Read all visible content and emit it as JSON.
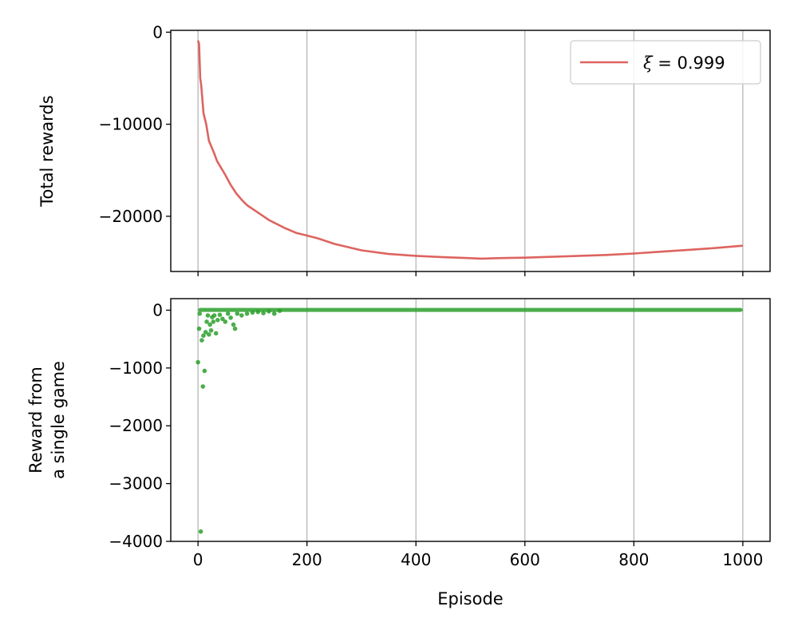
{
  "chart_data": [
    {
      "type": "line",
      "ylabel": "Total rewards",
      "xlim": [
        -50,
        1050
      ],
      "ylim": [
        -26000,
        200
      ],
      "xticks": [
        0,
        200,
        400,
        600,
        800,
        1000
      ],
      "yticks": [
        0,
        -10000,
        -20000
      ],
      "ytick_labels": [
        "0",
        "−10000",
        "−20000"
      ],
      "grid": "x",
      "legend": {
        "placement": "top-right",
        "prefix": "ξ",
        "suffix": " = 0.999"
      },
      "series": [
        {
          "name": "ξ = 0.999",
          "color": "#d9534f",
          "x": [
            0,
            2,
            4,
            6,
            10,
            15,
            20,
            25,
            30,
            35,
            40,
            50,
            60,
            70,
            80,
            90,
            100,
            110,
            120,
            130,
            140,
            150,
            160,
            180,
            200,
            220,
            250,
            300,
            350,
            400,
            450,
            500,
            520,
            550,
            600,
            650,
            700,
            750,
            800,
            850,
            900,
            950,
            1000
          ],
          "y": [
            -900,
            -1300,
            -5000,
            -5800,
            -8800,
            -10000,
            -11800,
            -12500,
            -13200,
            -14000,
            -14500,
            -15500,
            -16600,
            -17500,
            -18200,
            -18800,
            -19200,
            -19600,
            -20000,
            -20400,
            -20700,
            -21000,
            -21300,
            -21800,
            -22100,
            -22400,
            -23000,
            -23700,
            -24100,
            -24300,
            -24450,
            -24550,
            -24600,
            -24550,
            -24500,
            -24400,
            -24300,
            -24200,
            -24050,
            -23850,
            -23650,
            -23450,
            -23200
          ]
        }
      ]
    },
    {
      "type": "scatter",
      "xlabel": "Episode",
      "ylabel_lines": [
        "Reward from",
        "a single game"
      ],
      "xlim": [
        -50,
        1050
      ],
      "ylim": [
        -4000,
        200
      ],
      "xticks": [
        0,
        200,
        400,
        600,
        800,
        1000
      ],
      "xtick_labels": [
        "0",
        "200",
        "400",
        "600",
        "800",
        "1000"
      ],
      "yticks": [
        0,
        -1000,
        -2000,
        -3000,
        -4000
      ],
      "ytick_labels": [
        "0",
        "−1000",
        "−2000",
        "−3000",
        "−4000"
      ],
      "grid": "x",
      "series": [
        {
          "color": "#2ca02c",
          "points": [
            [
              0,
              -900
            ],
            [
              2,
              -320
            ],
            [
              3,
              -60
            ],
            [
              5,
              -3830
            ],
            [
              7,
              -520
            ],
            [
              9,
              -1320
            ],
            [
              10,
              -440
            ],
            [
              12,
              -1050
            ],
            [
              14,
              -380
            ],
            [
              16,
              -200
            ],
            [
              18,
              -90
            ],
            [
              20,
              -420
            ],
            [
              22,
              -250
            ],
            [
              24,
              -350
            ],
            [
              26,
              -120
            ],
            [
              28,
              -200
            ],
            [
              30,
              -90
            ],
            [
              33,
              -400
            ],
            [
              36,
              -170
            ],
            [
              40,
              -80
            ],
            [
              45,
              -150
            ],
            [
              50,
              -200
            ],
            [
              55,
              -60
            ],
            [
              60,
              -130
            ],
            [
              65,
              -250
            ],
            [
              68,
              -320
            ],
            [
              72,
              -60
            ],
            [
              80,
              -90
            ],
            [
              90,
              -60
            ],
            [
              100,
              -40
            ],
            [
              110,
              -30
            ],
            [
              120,
              -50
            ],
            [
              130,
              -20
            ],
            [
              140,
              -60
            ],
            [
              150,
              -10
            ]
          ]
        }
      ]
    }
  ]
}
